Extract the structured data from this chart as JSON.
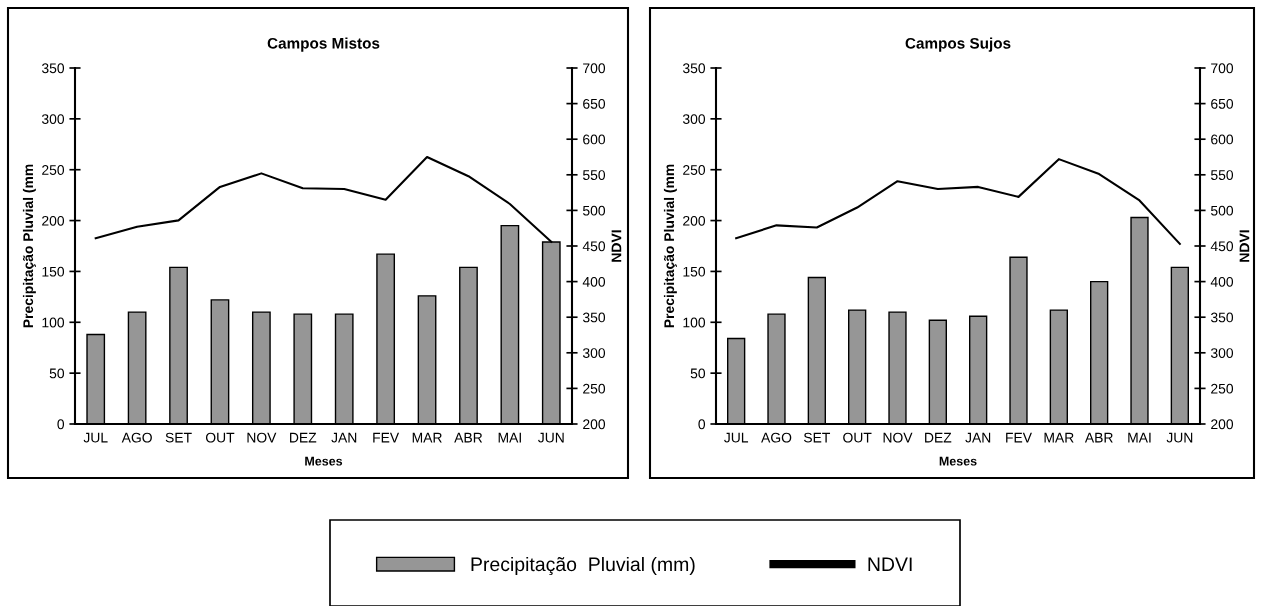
{
  "chart_data": [
    {
      "type": "bar",
      "title": "Campos Mistos",
      "xlabel": "Meses",
      "ylabel": "Precipitação Pluvial (mm",
      "y2label": "NDVI",
      "categories": [
        "JUL",
        "AGO",
        "SET",
        "OUT",
        "NOV",
        "DEZ",
        "JAN",
        "FEV",
        "MAR",
        "ABR",
        "MAI",
        "JUN"
      ],
      "series": [
        {
          "name": "Precipitação  Pluvial (mm)",
          "color": "#969696",
          "values": [
            88,
            110,
            154,
            122,
            110,
            108,
            108,
            167,
            126,
            154,
            195,
            179
          ]
        },
        {
          "name": "NDVI",
          "type": "line",
          "axis": "y2",
          "color": "#000000",
          "values": [
            461,
            477,
            486,
            533,
            552,
            531,
            530,
            515,
            575,
            548,
            509,
            456
          ]
        }
      ],
      "ylim": [
        0,
        350
      ],
      "yticks": [
        0,
        50,
        100,
        150,
        200,
        250,
        300,
        350
      ],
      "y2lim": [
        200,
        700
      ],
      "y2ticks": [
        200,
        250,
        300,
        350,
        400,
        450,
        500,
        550,
        600,
        650,
        700
      ],
      "legend": "bottom",
      "grid": false
    },
    {
      "type": "bar",
      "title": "Campos Sujos",
      "xlabel": "Meses",
      "ylabel": "Precipitação Pluvial (mm",
      "y2label": "NDVI",
      "categories": [
        "JUL",
        "AGO",
        "SET",
        "OUT",
        "NOV",
        "DEZ",
        "JAN",
        "FEV",
        "MAR",
        "ABR",
        "MAI",
        "JUN"
      ],
      "series": [
        {
          "color": "#969696",
          "values": [
            84,
            108,
            144,
            112,
            110,
            102,
            106,
            164,
            112,
            140,
            203,
            154
          ]
        },
        {
          "type": "line",
          "axis": "y2",
          "color": "#000000",
          "values": [
            461,
            479,
            476,
            504,
            541,
            530,
            533,
            519,
            572,
            551,
            514,
            453
          ]
        }
      ],
      "ylim": [
        0,
        350
      ],
      "yticks": [
        0,
        50,
        100,
        150,
        200,
        250,
        300,
        350
      ],
      "y2lim": [
        200,
        700
      ],
      "y2ticks": [
        200,
        250,
        300,
        350,
        400,
        450,
        500,
        550,
        600,
        650,
        700
      ],
      "legend": false,
      "grid": false
    }
  ]
}
